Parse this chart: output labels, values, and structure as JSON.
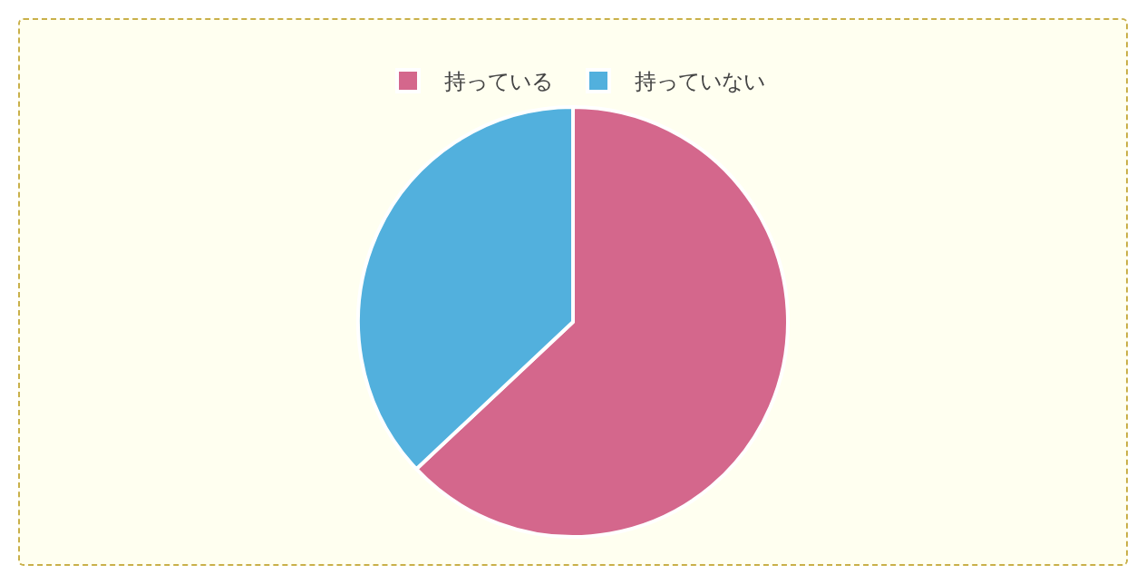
{
  "chart_data": {
    "type": "pie",
    "categories": [
      "持っている",
      "持っていない"
    ],
    "values": [
      63,
      37
    ],
    "colors": [
      "#d4678c",
      "#52b0dd"
    ],
    "legend": "top"
  }
}
